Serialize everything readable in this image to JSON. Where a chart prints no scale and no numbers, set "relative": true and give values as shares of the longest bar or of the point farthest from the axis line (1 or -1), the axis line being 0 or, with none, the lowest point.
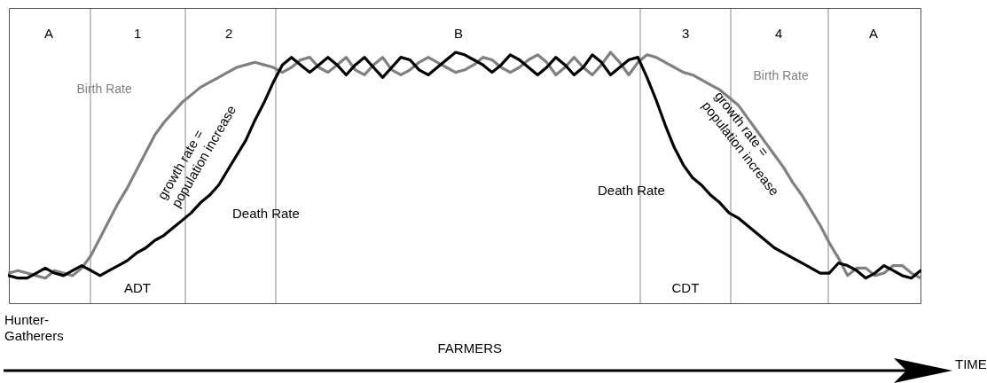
{
  "chart_data": {
    "type": "line",
    "relative": true,
    "line_style": "solid",
    "categories": [
      null,
      null,
      null,
      null,
      null,
      null,
      null,
      null,
      null,
      null,
      null,
      null,
      null,
      null,
      null,
      null,
      null,
      null,
      null,
      null,
      null,
      null,
      null,
      null,
      null,
      null,
      null,
      null,
      null,
      null,
      null,
      null,
      null,
      null,
      null,
      null,
      null,
      null,
      null,
      null,
      null,
      null,
      null,
      null,
      null,
      null,
      null,
      null,
      null,
      null,
      null,
      null,
      null,
      null,
      null,
      null,
      null,
      null,
      null,
      null,
      null,
      null,
      null,
      null,
      null,
      null,
      null,
      null,
      null,
      null,
      null,
      null,
      null,
      null,
      null,
      null,
      null,
      null,
      null,
      null,
      null,
      null,
      null,
      null,
      null,
      null,
      null,
      null,
      null,
      null,
      null,
      null,
      null,
      null,
      null,
      null,
      null,
      null,
      null,
      null,
      null
    ],
    "series": [
      {
        "color": "#808080",
        "values": [
          0.12,
          0.13,
          0.12,
          0.11,
          0.1,
          0.13,
          0.12,
          0.11,
          0.14,
          0.19,
          0.26,
          0.33,
          0.4,
          0.46,
          0.53,
          0.6,
          0.67,
          0.72,
          0.76,
          0.8,
          0.83,
          0.86,
          0.88,
          0.9,
          0.92,
          0.94,
          0.95,
          0.96,
          0.95,
          0.94,
          0.92,
          0.94,
          0.97,
          0.98,
          0.94,
          0.92,
          0.95,
          0.98,
          0.93,
          0.91,
          0.95,
          0.98,
          0.93,
          0.91,
          0.93,
          0.96,
          0.98,
          0.96,
          0.94,
          0.92,
          0.93,
          0.95,
          0.98,
          0.97,
          0.94,
          0.92,
          0.94,
          0.97,
          0.99,
          0.96,
          0.91,
          0.94,
          0.98,
          0.94,
          0.91,
          0.95,
          1.0,
          0.96,
          0.91,
          0.96,
          0.99,
          0.98,
          0.96,
          0.94,
          0.92,
          0.91,
          0.89,
          0.87,
          0.85,
          0.82,
          0.79,
          0.74,
          0.69,
          0.64,
          0.59,
          0.54,
          0.48,
          0.43,
          0.37,
          0.31,
          0.24,
          0.18,
          0.11,
          0.14,
          0.14,
          0.11,
          0.12,
          0.15,
          0.15,
          0.12,
          0.1
        ]
      },
      {
        "color": "#000000",
        "values": [
          0.11,
          0.1,
          0.1,
          0.12,
          0.14,
          0.12,
          0.11,
          0.13,
          0.15,
          0.13,
          0.11,
          0.13,
          0.15,
          0.17,
          0.2,
          0.22,
          0.25,
          0.27,
          0.3,
          0.33,
          0.36,
          0.4,
          0.43,
          0.47,
          0.53,
          0.59,
          0.65,
          0.73,
          0.8,
          0.88,
          0.95,
          0.98,
          0.95,
          0.92,
          0.95,
          0.98,
          0.95,
          0.91,
          0.95,
          0.98,
          0.94,
          0.9,
          0.94,
          0.98,
          0.97,
          0.93,
          0.91,
          0.94,
          0.97,
          1.0,
          0.99,
          0.97,
          0.95,
          0.92,
          0.95,
          0.99,
          0.97,
          0.94,
          0.91,
          0.94,
          0.98,
          0.95,
          0.91,
          0.94,
          0.99,
          0.96,
          0.91,
          0.94,
          0.97,
          0.98,
          0.9,
          0.81,
          0.71,
          0.62,
          0.55,
          0.5,
          0.47,
          0.43,
          0.4,
          0.36,
          0.34,
          0.31,
          0.28,
          0.25,
          0.22,
          0.2,
          0.18,
          0.16,
          0.14,
          0.12,
          0.12,
          0.16,
          0.15,
          0.13,
          0.1,
          0.12,
          0.15,
          0.13,
          0.11,
          0.1,
          0.13
        ]
      }
    ],
    "annotations": [
      "A",
      "1",
      "2",
      "B",
      "3",
      "4",
      "A",
      "Birth Rate",
      "Birth Rate",
      "Death Rate",
      "Death Rate",
      "growth rate =\npopulation increase",
      "growth rate =\npopulation increase",
      "ADT",
      "CDT",
      "Hunter-\nGatherers",
      "FARMERS",
      "TIME"
    ]
  }
}
